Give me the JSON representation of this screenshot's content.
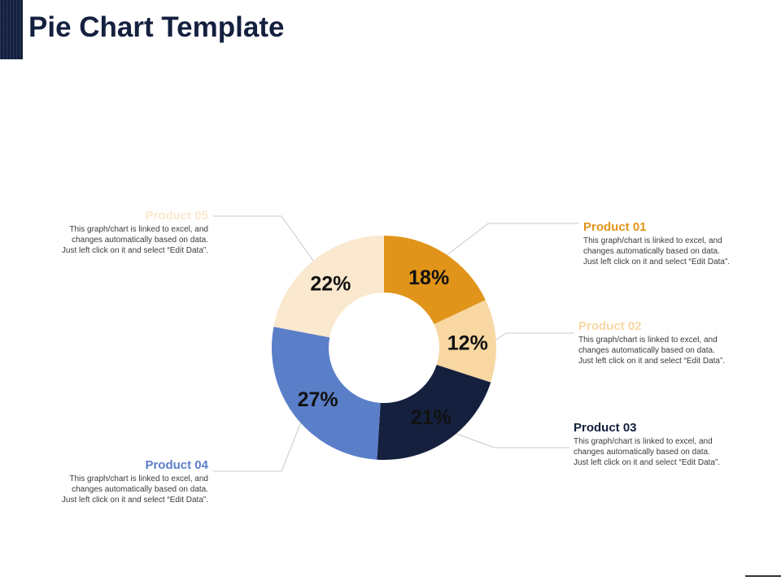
{
  "page": {
    "title": "Pie Chart Template"
  },
  "chart_data": {
    "type": "pie",
    "variant": "donut",
    "title": "Pie Chart Template",
    "categories": [
      "Product 01",
      "Product 02",
      "Product 03",
      "Product 04",
      "Product 05"
    ],
    "values": [
      18,
      12,
      21,
      27,
      22
    ],
    "unit": "%",
    "data_labels": [
      "18%",
      "12%",
      "21%",
      "27%",
      "22%"
    ],
    "colors": [
      "#e09419",
      "#f8d7a3",
      "#15203f",
      "#5b7ec9",
      "#fae8cf"
    ],
    "title_colors": [
      "#e09419",
      "#f8d7a3",
      "#15203f",
      "#5b7ec9",
      "#fae8cf"
    ]
  },
  "labels": [
    {
      "title": "Product 01",
      "desc": [
        "This graph/chart is linked to excel, and",
        "changes automatically based on data.",
        "Just left click on it and select “Edit Data”."
      ]
    },
    {
      "title": "Product 02",
      "desc": [
        "This graph/chart is linked to excel, and",
        "changes automatically based on data.",
        "Just left click on it and select “Edit Data”."
      ]
    },
    {
      "title": "Product 03",
      "desc": [
        "This graph/chart is linked to excel, and",
        "changes automatically based on data.",
        "Just left click on it and select “Edit Data”."
      ]
    },
    {
      "title": "Product 04",
      "desc": [
        "This graph/chart is linked to excel, and",
        "changes automatically based on data.",
        "Just left click on it and select “Edit Data”."
      ]
    },
    {
      "title": "Product 05",
      "desc": [
        "This graph/chart is linked to excel, and",
        "changes automatically based on data.",
        "Just left click on it and select “Edit Data”."
      ]
    }
  ]
}
